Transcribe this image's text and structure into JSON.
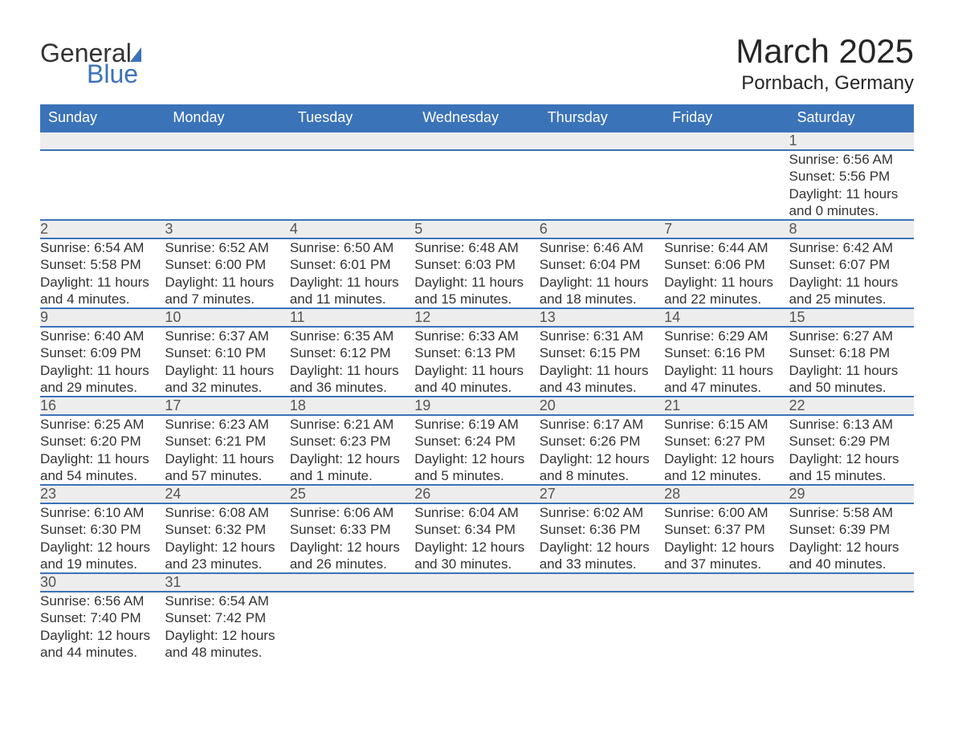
{
  "logo": {
    "word1": "General",
    "word2": "Blue"
  },
  "title": "March 2025",
  "subtitle": "Pornbach, Germany",
  "colors": {
    "header_bg": "#3B73B9",
    "header_text": "#ffffff",
    "daynum_bg": "#EDEDED",
    "text": "#333333",
    "rule": "#3B73B9"
  },
  "fontsize": {
    "title": 42,
    "subtitle": 24,
    "header": 18,
    "cell": 17
  },
  "day_headers": [
    "Sunday",
    "Monday",
    "Tuesday",
    "Wednesday",
    "Thursday",
    "Friday",
    "Saturday"
  ],
  "weeks": [
    [
      null,
      null,
      null,
      null,
      null,
      null,
      {
        "n": "1",
        "sr": "Sunrise: 6:56 AM",
        "ss": "Sunset: 5:56 PM",
        "dl": "Daylight: 11 hours and 0 minutes."
      }
    ],
    [
      {
        "n": "2",
        "sr": "Sunrise: 6:54 AM",
        "ss": "Sunset: 5:58 PM",
        "dl": "Daylight: 11 hours and 4 minutes."
      },
      {
        "n": "3",
        "sr": "Sunrise: 6:52 AM",
        "ss": "Sunset: 6:00 PM",
        "dl": "Daylight: 11 hours and 7 minutes."
      },
      {
        "n": "4",
        "sr": "Sunrise: 6:50 AM",
        "ss": "Sunset: 6:01 PM",
        "dl": "Daylight: 11 hours and 11 minutes."
      },
      {
        "n": "5",
        "sr": "Sunrise: 6:48 AM",
        "ss": "Sunset: 6:03 PM",
        "dl": "Daylight: 11 hours and 15 minutes."
      },
      {
        "n": "6",
        "sr": "Sunrise: 6:46 AM",
        "ss": "Sunset: 6:04 PM",
        "dl": "Daylight: 11 hours and 18 minutes."
      },
      {
        "n": "7",
        "sr": "Sunrise: 6:44 AM",
        "ss": "Sunset: 6:06 PM",
        "dl": "Daylight: 11 hours and 22 minutes."
      },
      {
        "n": "8",
        "sr": "Sunrise: 6:42 AM",
        "ss": "Sunset: 6:07 PM",
        "dl": "Daylight: 11 hours and 25 minutes."
      }
    ],
    [
      {
        "n": "9",
        "sr": "Sunrise: 6:40 AM",
        "ss": "Sunset: 6:09 PM",
        "dl": "Daylight: 11 hours and 29 minutes."
      },
      {
        "n": "10",
        "sr": "Sunrise: 6:37 AM",
        "ss": "Sunset: 6:10 PM",
        "dl": "Daylight: 11 hours and 32 minutes."
      },
      {
        "n": "11",
        "sr": "Sunrise: 6:35 AM",
        "ss": "Sunset: 6:12 PM",
        "dl": "Daylight: 11 hours and 36 minutes."
      },
      {
        "n": "12",
        "sr": "Sunrise: 6:33 AM",
        "ss": "Sunset: 6:13 PM",
        "dl": "Daylight: 11 hours and 40 minutes."
      },
      {
        "n": "13",
        "sr": "Sunrise: 6:31 AM",
        "ss": "Sunset: 6:15 PM",
        "dl": "Daylight: 11 hours and 43 minutes."
      },
      {
        "n": "14",
        "sr": "Sunrise: 6:29 AM",
        "ss": "Sunset: 6:16 PM",
        "dl": "Daylight: 11 hours and 47 minutes."
      },
      {
        "n": "15",
        "sr": "Sunrise: 6:27 AM",
        "ss": "Sunset: 6:18 PM",
        "dl": "Daylight: 11 hours and 50 minutes."
      }
    ],
    [
      {
        "n": "16",
        "sr": "Sunrise: 6:25 AM",
        "ss": "Sunset: 6:20 PM",
        "dl": "Daylight: 11 hours and 54 minutes."
      },
      {
        "n": "17",
        "sr": "Sunrise: 6:23 AM",
        "ss": "Sunset: 6:21 PM",
        "dl": "Daylight: 11 hours and 57 minutes."
      },
      {
        "n": "18",
        "sr": "Sunrise: 6:21 AM",
        "ss": "Sunset: 6:23 PM",
        "dl": "Daylight: 12 hours and 1 minute."
      },
      {
        "n": "19",
        "sr": "Sunrise: 6:19 AM",
        "ss": "Sunset: 6:24 PM",
        "dl": "Daylight: 12 hours and 5 minutes."
      },
      {
        "n": "20",
        "sr": "Sunrise: 6:17 AM",
        "ss": "Sunset: 6:26 PM",
        "dl": "Daylight: 12 hours and 8 minutes."
      },
      {
        "n": "21",
        "sr": "Sunrise: 6:15 AM",
        "ss": "Sunset: 6:27 PM",
        "dl": "Daylight: 12 hours and 12 minutes."
      },
      {
        "n": "22",
        "sr": "Sunrise: 6:13 AM",
        "ss": "Sunset: 6:29 PM",
        "dl": "Daylight: 12 hours and 15 minutes."
      }
    ],
    [
      {
        "n": "23",
        "sr": "Sunrise: 6:10 AM",
        "ss": "Sunset: 6:30 PM",
        "dl": "Daylight: 12 hours and 19 minutes."
      },
      {
        "n": "24",
        "sr": "Sunrise: 6:08 AM",
        "ss": "Sunset: 6:32 PM",
        "dl": "Daylight: 12 hours and 23 minutes."
      },
      {
        "n": "25",
        "sr": "Sunrise: 6:06 AM",
        "ss": "Sunset: 6:33 PM",
        "dl": "Daylight: 12 hours and 26 minutes."
      },
      {
        "n": "26",
        "sr": "Sunrise: 6:04 AM",
        "ss": "Sunset: 6:34 PM",
        "dl": "Daylight: 12 hours and 30 minutes."
      },
      {
        "n": "27",
        "sr": "Sunrise: 6:02 AM",
        "ss": "Sunset: 6:36 PM",
        "dl": "Daylight: 12 hours and 33 minutes."
      },
      {
        "n": "28",
        "sr": "Sunrise: 6:00 AM",
        "ss": "Sunset: 6:37 PM",
        "dl": "Daylight: 12 hours and 37 minutes."
      },
      {
        "n": "29",
        "sr": "Sunrise: 5:58 AM",
        "ss": "Sunset: 6:39 PM",
        "dl": "Daylight: 12 hours and 40 minutes."
      }
    ],
    [
      {
        "n": "30",
        "sr": "Sunrise: 6:56 AM",
        "ss": "Sunset: 7:40 PM",
        "dl": "Daylight: 12 hours and 44 minutes."
      },
      {
        "n": "31",
        "sr": "Sunrise: 6:54 AM",
        "ss": "Sunset: 7:42 PM",
        "dl": "Daylight: 12 hours and 48 minutes."
      },
      null,
      null,
      null,
      null,
      null
    ]
  ]
}
